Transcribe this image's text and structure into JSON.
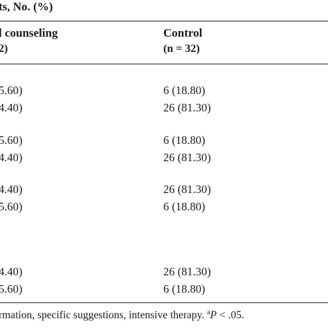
{
  "table": {
    "group_header": "ts, No. (%)",
    "col1_header": "l counseling",
    "col1_n": "2)",
    "col2_header": "Control",
    "col2_n": "(n = 32)",
    "rows": [
      {
        "col1": "5.60)",
        "col2": "6 (18.80)"
      },
      {
        "col1": "4.40)",
        "col2": "26 (81.30)"
      },
      {
        "col1": "5.60)",
        "col2": "6 (18.80)"
      },
      {
        "col1": "4.40)",
        "col2": "26 (81.30)"
      },
      {
        "col1": "4.40)",
        "col2": "26 (81.30)"
      },
      {
        "col1": "5.60)",
        "col2": "6 (18.80)"
      },
      {
        "col1": "4.40)",
        "col2": "26 (81.30)"
      },
      {
        "col1": "5.60)",
        "col2": "6 (18.80)"
      }
    ]
  },
  "footnote": {
    "text": "rmation, specific suggestions, intensive therapy.",
    "marker": "a",
    "p_label": "P",
    "p_value": "< .05."
  }
}
